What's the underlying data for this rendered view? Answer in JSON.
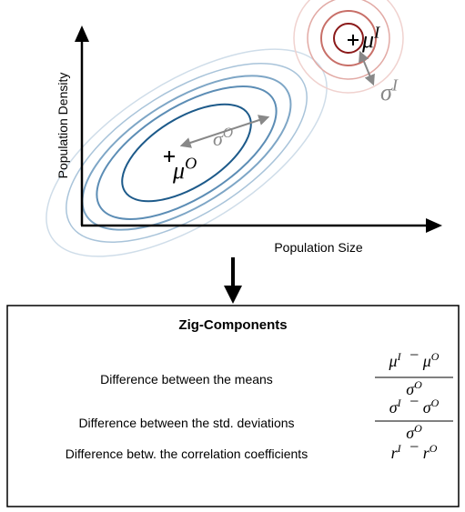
{
  "plot": {
    "y_label": "Population Density",
    "x_label": "Population Size",
    "inner_mean": {
      "symbol": "μ",
      "sup": "I"
    },
    "inner_sd": {
      "symbol": "σ",
      "sup": "I"
    },
    "outer_mean": {
      "symbol": "μ",
      "sup": "O"
    },
    "outer_sd": {
      "symbol": "σ",
      "sup": "O"
    }
  },
  "box": {
    "title": "Zig-Components",
    "rows": [
      {
        "label": "Difference between the means",
        "numerator": [
          {
            "symbol": "μ",
            "sup": "I"
          },
          {
            "op": "−"
          },
          {
            "symbol": "μ",
            "sup": "O"
          }
        ],
        "denominator": [
          {
            "symbol": "σ",
            "sup": "O"
          }
        ]
      },
      {
        "label": "Difference between the std. deviations",
        "numerator": [
          {
            "symbol": "σ",
            "sup": "I"
          },
          {
            "op": "−"
          },
          {
            "symbol": "σ",
            "sup": "O"
          }
        ],
        "denominator": [
          {
            "symbol": "σ",
            "sup": "O"
          }
        ]
      },
      {
        "label": "Difference betw. the correlation coefficients",
        "numerator": [
          {
            "symbol": "r",
            "sup": "I"
          },
          {
            "op": "−"
          },
          {
            "symbol": "r",
            "sup": "O"
          }
        ]
      }
    ]
  }
}
